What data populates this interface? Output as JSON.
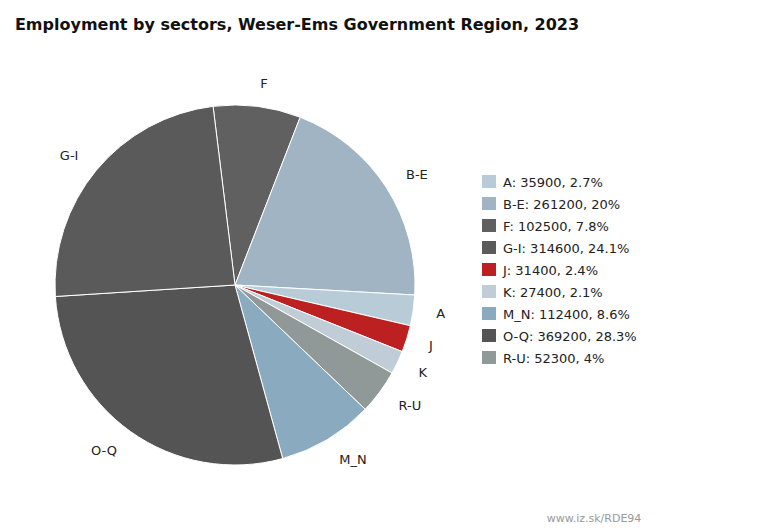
{
  "chart_data": {
    "type": "pie",
    "title": "Employment by sectors, Weser-Ems Government Region, 2023",
    "categories": [
      "F",
      "B-E",
      "A",
      "J",
      "K",
      "R-U",
      "M_N",
      "O-Q",
      "G-I"
    ],
    "values": [
      102500,
      261200,
      35900,
      31400,
      27400,
      52300,
      112400,
      369200,
      314600
    ],
    "colors": [
      "#606060",
      "#a0b4c4",
      "#b8ccd8",
      "#bc2020",
      "#c0ccd6",
      "#909898",
      "#8aaabf",
      "#545454",
      "#5a5a5a"
    ],
    "legend_entries": [
      {
        "label": "A: 35900, 2.7%",
        "color": "#b8ccd8"
      },
      {
        "label": "B-E: 261200, 20%",
        "color": "#a0b4c4"
      },
      {
        "label": "F: 102500, 7.8%",
        "color": "#606060"
      },
      {
        "label": "G-I: 314600, 24.1%",
        "color": "#5a5a5a"
      },
      {
        "label": "J: 31400, 2.4%",
        "color": "#bc2020"
      },
      {
        "label": "K: 27400, 2.1%",
        "color": "#c0ccd6"
      },
      {
        "label": "M_N: 112400, 8.6%",
        "color": "#8aaabf"
      },
      {
        "label": "O-Q: 369200, 28.3%",
        "color": "#545454"
      },
      {
        "label": "R-U: 52300, 4%",
        "color": "#909898"
      }
    ],
    "annotations": [
      "www.iz.sk/RDE94"
    ]
  }
}
